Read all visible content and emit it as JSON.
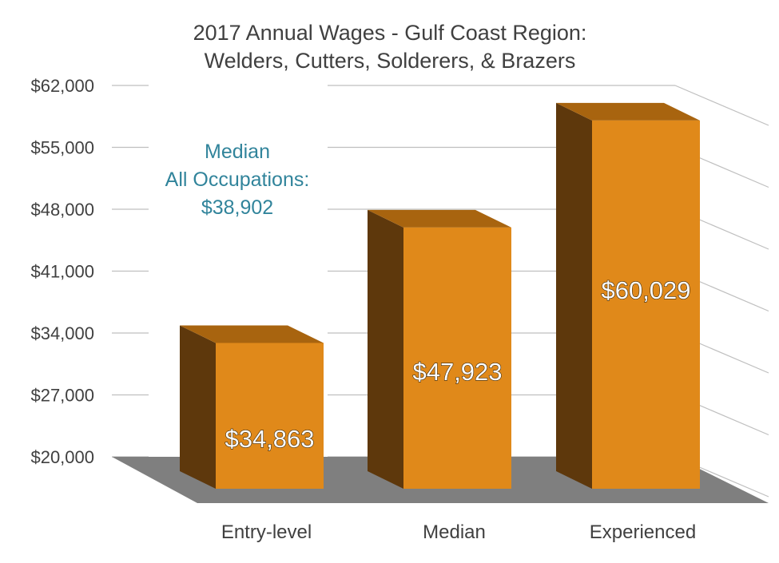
{
  "chart_data": {
    "type": "bar",
    "title_line1": "2017 Annual Wages - Gulf Coast Region:",
    "title_line2": "Welders, Cutters, Solderers, & Brazers",
    "categories": [
      "Entry-level",
      "Median",
      "Experienced"
    ],
    "values": [
      34863,
      47923,
      60029
    ],
    "value_labels": [
      "$34,863",
      "$47,923",
      "$60,029"
    ],
    "yticks": [
      "$20,000",
      "$27,000",
      "$34,000",
      "$41,000",
      "$48,000",
      "$55,000",
      "$62,000"
    ],
    "ytick_values": [
      20000,
      27000,
      34000,
      41000,
      48000,
      55000,
      62000
    ],
    "ylim": [
      20000,
      62000
    ],
    "grid": true,
    "annotation": {
      "line1": "Median",
      "line2": "All Occupations:",
      "line3": "$38,902"
    },
    "colors": {
      "bar_front": "#E0891A",
      "bar_top": "#A8640F",
      "bar_side": "#5E380C",
      "floor": "#7F7F7F",
      "grid": "#BFBFBF",
      "annotation": "#31849B"
    }
  }
}
